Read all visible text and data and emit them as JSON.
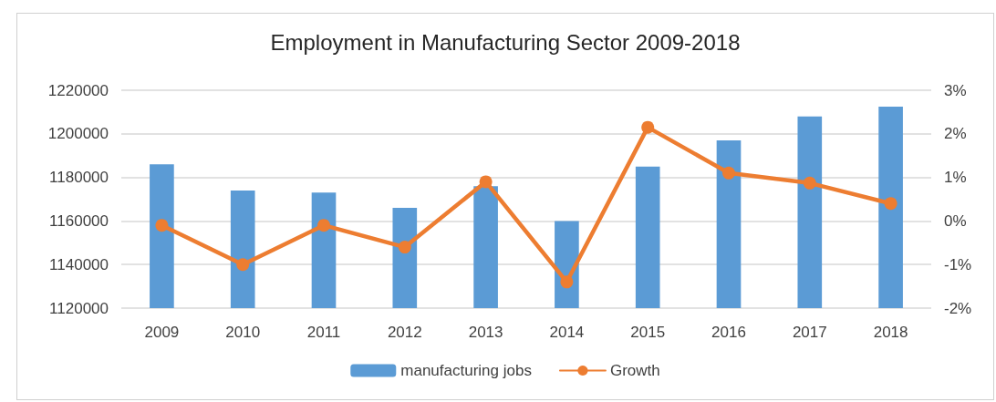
{
  "chart_data": {
    "type": "bar",
    "title": "Employment in Manufacturing Sector 2009-2018",
    "categories": [
      "2009",
      "2010",
      "2011",
      "2012",
      "2013",
      "2014",
      "2015",
      "2016",
      "2017",
      "2018"
    ],
    "series": [
      {
        "name": "manufacturing jobs",
        "color": "#5b9bd5",
        "values": [
          1186000,
          1174000,
          1173000,
          1166000,
          1176000,
          1160000,
          1185000,
          1197000,
          1208000,
          1212500
        ]
      },
      {
        "name": "Growth",
        "type": "line",
        "axis": "y2",
        "color": "#ed7d31",
        "values": [
          -0.1,
          -1.0,
          -0.1,
          -0.6,
          0.9,
          -1.4,
          2.15,
          1.1,
          0.87,
          0.4
        ]
      }
    ],
    "ylim": [
      1120000,
      1220000
    ],
    "yticks": [
      1120000,
      1140000,
      1160000,
      1180000,
      1200000,
      1220000
    ],
    "y2lim": [
      -2,
      3
    ],
    "y2ticks": [
      {
        "value": -2,
        "label": "-2%"
      },
      {
        "value": -1,
        "label": "-1%"
      },
      {
        "value": 0,
        "label": "0%"
      },
      {
        "value": 1,
        "label": "1%"
      },
      {
        "value": 2,
        "label": "2%"
      },
      {
        "value": 3,
        "label": "3%"
      }
    ],
    "grid": "y",
    "legend": "bottom",
    "marker": "circle",
    "line_style": "solid"
  }
}
